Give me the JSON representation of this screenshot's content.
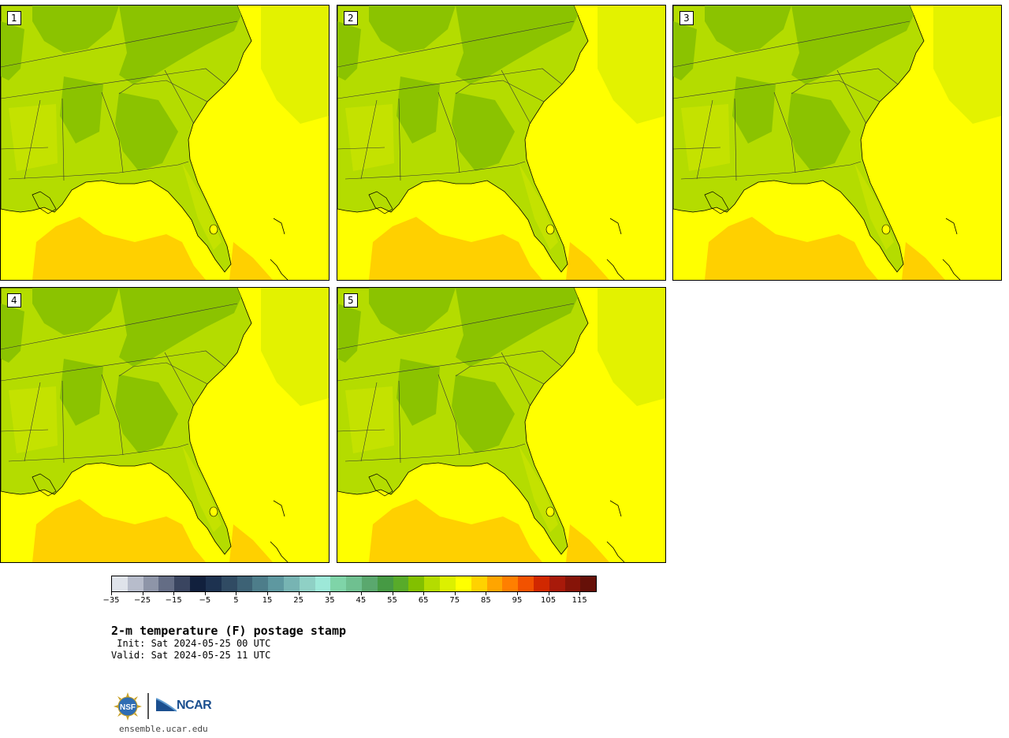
{
  "panels": [
    {
      "label": "1",
      "land": "#b4dc00",
      "dark": "#86c000",
      "water": "#ffff00",
      "gulf": "#ffd000"
    },
    {
      "label": "2",
      "land": "#b4dc00",
      "dark": "#86c000",
      "water": "#ffff00",
      "gulf": "#ffd000"
    },
    {
      "label": "3",
      "land": "#b4dc00",
      "dark": "#86c000",
      "water": "#ffff00",
      "gulf": "#ffd000"
    },
    {
      "label": "4",
      "land": "#b4dc00",
      "dark": "#86c000",
      "water": "#ffff00",
      "gulf": "#ffd000"
    },
    {
      "label": "5",
      "land": "#b4dc00",
      "dark": "#86c000",
      "water": "#ffff00",
      "gulf": "#ffd000"
    }
  ],
  "colorbar": {
    "colors": [
      "#dfe3ea",
      "#b7bccb",
      "#8e95a8",
      "#646d85",
      "#3a4560",
      "#11203d",
      "#1d3250",
      "#304b63",
      "#3d6275",
      "#4d7d8a",
      "#5e98a0",
      "#77b4b3",
      "#8fd0c5",
      "#9de8d8",
      "#7fd4a8",
      "#6fc090",
      "#5aa86e",
      "#469a44",
      "#58ab2a",
      "#82c000",
      "#b4dc00",
      "#dcf000",
      "#ffff00",
      "#ffd200",
      "#ffa500",
      "#ff7f00",
      "#f25200",
      "#d12800",
      "#a81a0a",
      "#861408",
      "#661008"
    ],
    "tick_values": [
      "−35",
      "−25",
      "−15",
      "−5",
      "5",
      "15",
      "25",
      "35",
      "45",
      "55",
      "65",
      "75",
      "85",
      "95",
      "105",
      "115"
    ]
  },
  "title": "2-m temperature (F) postage stamp",
  "init": " Init: Sat 2024-05-25 00 UTC",
  "valid": "Valid: Sat 2024-05-25 11 UTC",
  "logos": {
    "nsf": "NSF",
    "ncar": "NCAR"
  },
  "site": "ensemble.ucar.edu"
}
